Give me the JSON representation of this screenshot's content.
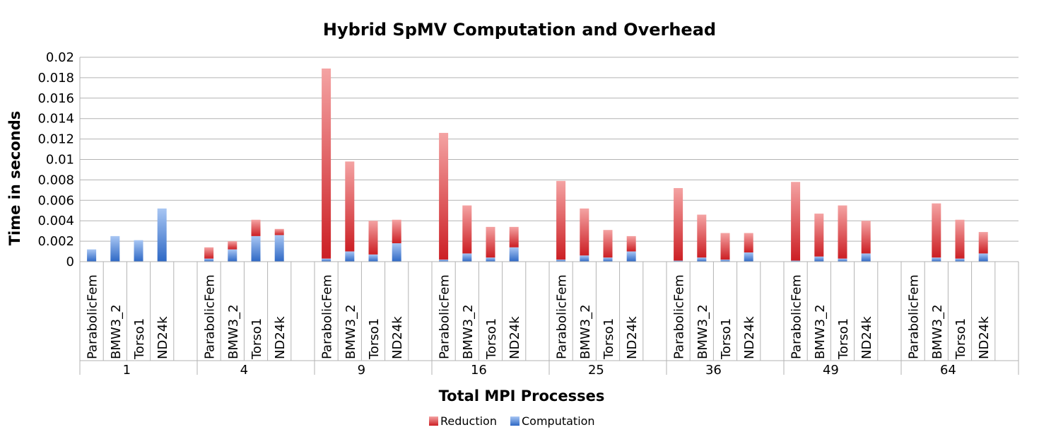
{
  "chart_data": {
    "type": "bar",
    "stacked": true,
    "title": "Hybrid SpMV Computation and Overhead",
    "xlabel": "Total MPI Processes",
    "ylabel": "Time in seconds",
    "ylim": [
      0,
      0.02
    ],
    "yticks": [
      "0",
      "0.002",
      "0.004",
      "0.006",
      "0.008",
      "0.01",
      "0.012",
      "0.014",
      "0.016",
      "0.018",
      "0.02"
    ],
    "grid": true,
    "legend_position": "bottom",
    "groups": [
      "1",
      "4",
      "9",
      "16",
      "25",
      "36",
      "49",
      "64"
    ],
    "categories": [
      "ParabolicFem",
      "BMW3_2",
      "Torso1",
      "ND24k"
    ],
    "series": [
      {
        "name": "Computation",
        "color": "#4a7fd0",
        "values": [
          [
            0.0012,
            0.0025,
            0.0021,
            0.0052
          ],
          [
            0.0003,
            0.0012,
            0.0025,
            0.0026
          ],
          [
            0.0003,
            0.001,
            0.0007,
            0.0018
          ],
          [
            0.0002,
            0.0008,
            0.0004,
            0.0014
          ],
          [
            0.0002,
            0.0006,
            0.0004,
            0.001
          ],
          [
            0.0001,
            0.0004,
            0.0002,
            0.0009
          ],
          [
            0.0001,
            0.0005,
            0.0003,
            0.0008
          ],
          [
            0.0,
            0.0004,
            0.0003,
            0.0008
          ]
        ]
      },
      {
        "name": "Reduction",
        "color": "#d9373a",
        "values": [
          [
            0.0,
            0.0,
            0.0,
            0.0
          ],
          [
            0.0011,
            0.0008,
            0.0016,
            0.0006
          ],
          [
            0.0186,
            0.0088,
            0.0033,
            0.0023
          ],
          [
            0.0124,
            0.0047,
            0.003,
            0.002
          ],
          [
            0.0077,
            0.0046,
            0.0027,
            0.0015
          ],
          [
            0.0071,
            0.0042,
            0.0026,
            0.0019
          ],
          [
            0.0077,
            0.0042,
            0.0052,
            0.0032
          ],
          [
            0.0,
            0.0053,
            0.0038,
            0.0021
          ]
        ]
      }
    ]
  }
}
